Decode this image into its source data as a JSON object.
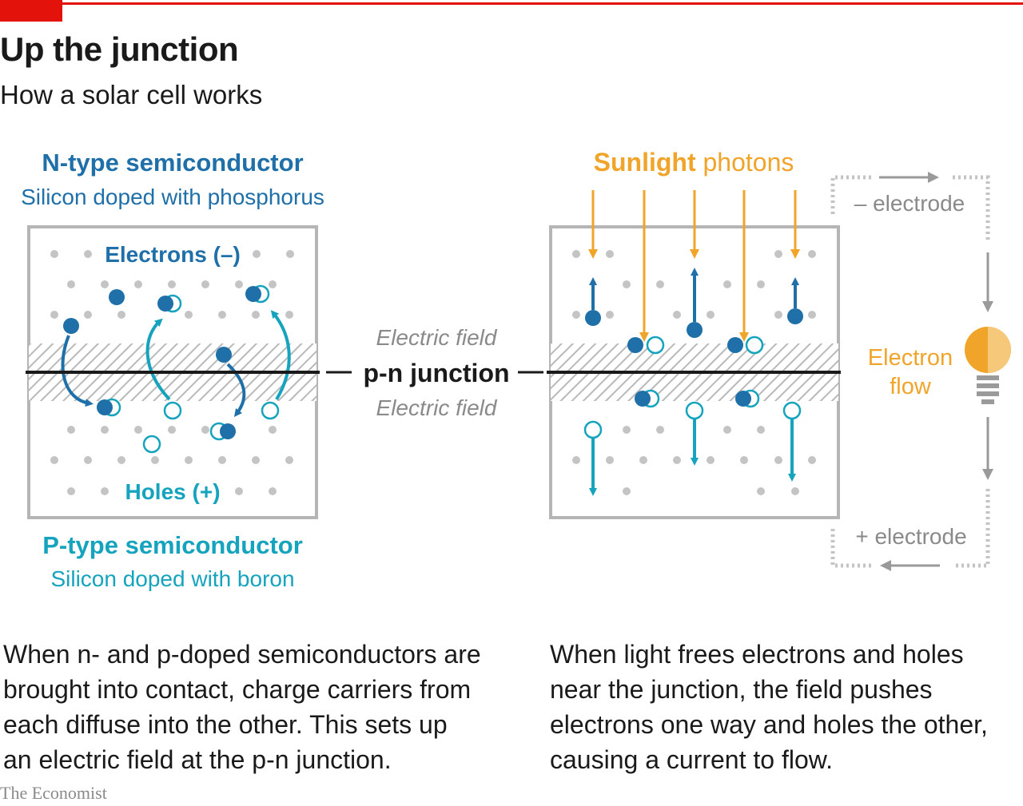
{
  "header": {
    "title": "Up the junction",
    "subtitle": "How a solar cell works"
  },
  "left_panel": {
    "n_type_title": "N-type semiconductor",
    "n_type_sub": "Silicon doped with phosphorus",
    "electrons_label": "Electrons (–)",
    "holes_label": "Holes (+)",
    "p_type_title": "P-type semiconductor",
    "p_type_sub": "Silicon doped with boron"
  },
  "center": {
    "field_top": "Electric field",
    "junction_label": "p-n junction",
    "field_bottom": "Electric field"
  },
  "right_panel": {
    "sunlight": "Sunlight",
    "photons": "photons",
    "neg_electrode": "– electrode",
    "pos_electrode": "+ electrode",
    "flow_line1": "Electron",
    "flow_line2": "flow"
  },
  "captions": {
    "left": "When n- and p-doped semiconductors are brought into contact, charge carriers from each diffuse into the other. This sets up an electric field at the p-n junction.",
    "right": "When light frees electrons and holes near the junction, the field pushes electrons one way and holes the other, causing a current to flow."
  },
  "source": "The Economist",
  "colors": {
    "accent_red": "#e3120b",
    "n_blue": "#1f6fa8",
    "p_teal": "#16a3bd",
    "sun_orange": "#f0a42a",
    "grey": "#9a9a9a"
  }
}
